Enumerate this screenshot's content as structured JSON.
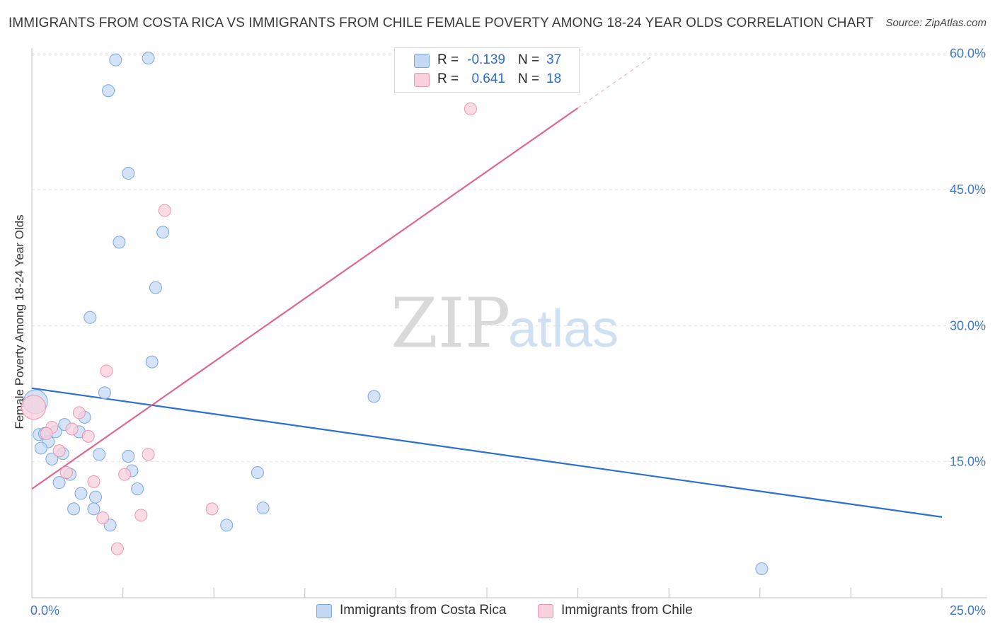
{
  "header": {
    "title": "IMMIGRANTS FROM COSTA RICA VS IMMIGRANTS FROM CHILE FEMALE POVERTY AMONG 18-24 YEAR OLDS CORRELATION CHART",
    "source": "Source: ZipAtlas.com"
  },
  "watermark": {
    "zip": "ZIP",
    "atlas": "atlas"
  },
  "colors": {
    "blue_fill": "#c5d9f4",
    "blue_stroke": "#7aa7df",
    "blue_line": "#2b6fd1",
    "pink_fill": "#f9d0dc",
    "pink_stroke": "#ec94b2",
    "pink_line": "#e0668f",
    "axis_text": "#3f78c9",
    "grid": "#e3e3e3"
  },
  "legend": {
    "r_label": "R =",
    "n_label": "N =",
    "series": [
      {
        "r": "-0.139",
        "n": "37"
      },
      {
        "r": "0.641",
        "n": "18"
      }
    ]
  },
  "chart_data": {
    "type": "scatter",
    "title": "IMMIGRANTS FROM COSTA RICA VS IMMIGRANTS FROM CHILE FEMALE POVERTY AMONG 18-24 YEAR OLDS CORRELATION CHART",
    "xlabel": "",
    "ylabel": "Female Poverty Among 18-24 Year Olds",
    "xlim": [
      0,
      25
    ],
    "ylim": [
      0,
      60.6
    ],
    "x_tick_labels": [
      "0.0%",
      "25.0%"
    ],
    "y_ticks": [
      15,
      30,
      45,
      60
    ],
    "y_tick_labels": [
      "15.0%",
      "30.0%",
      "45.0%",
      "60.0%"
    ],
    "series": [
      {
        "name": "Immigrants from Costa Rica",
        "r": -0.139,
        "n": 37,
        "trend": {
          "x0": 0,
          "y0": 23.1,
          "x1": 25,
          "y1": 8.9
        },
        "points": [
          [
            2.3,
            59.3
          ],
          [
            3.2,
            59.5
          ],
          [
            2.1,
            55.9
          ],
          [
            2.65,
            46.8
          ],
          [
            2.4,
            39.2
          ],
          [
            3.6,
            40.3
          ],
          [
            3.4,
            34.2
          ],
          [
            1.6,
            30.9
          ],
          [
            3.3,
            26.0
          ],
          [
            2.0,
            22.6
          ],
          [
            9.4,
            22.2
          ],
          [
            0.1,
            21.6
          ],
          [
            1.45,
            19.9
          ],
          [
            0.9,
            19.1
          ],
          [
            0.2,
            18.0
          ],
          [
            0.35,
            18.1
          ],
          [
            0.65,
            18.3
          ],
          [
            1.3,
            18.3
          ],
          [
            0.45,
            17.2
          ],
          [
            0.25,
            16.5
          ],
          [
            0.85,
            15.9
          ],
          [
            1.85,
            15.8
          ],
          [
            2.65,
            15.6
          ],
          [
            0.55,
            15.3
          ],
          [
            2.75,
            14.0
          ],
          [
            1.05,
            13.6
          ],
          [
            6.2,
            13.8
          ],
          [
            0.75,
            12.7
          ],
          [
            2.9,
            12.0
          ],
          [
            1.35,
            11.5
          ],
          [
            1.75,
            11.1
          ],
          [
            1.15,
            9.8
          ],
          [
            1.7,
            9.8
          ],
          [
            6.35,
            9.9
          ],
          [
            2.15,
            8.0
          ],
          [
            5.35,
            8.0
          ],
          [
            20.05,
            3.2
          ]
        ]
      },
      {
        "name": "Immigrants from Chile",
        "r": 0.641,
        "n": 18,
        "trend": {
          "x0": 0,
          "y0": 12.0,
          "x1": 15.0,
          "y1": 54.0,
          "dash_x1": 17.0,
          "dash_y1": 59.6
        },
        "points": [
          [
            12.05,
            53.9
          ],
          [
            3.65,
            42.7
          ],
          [
            2.05,
            25.0
          ],
          [
            0.05,
            21.0
          ],
          [
            1.3,
            20.4
          ],
          [
            0.55,
            18.8
          ],
          [
            0.4,
            18.1
          ],
          [
            1.1,
            18.6
          ],
          [
            1.55,
            17.8
          ],
          [
            0.75,
            16.2
          ],
          [
            3.2,
            15.8
          ],
          [
            0.95,
            13.8
          ],
          [
            2.55,
            13.6
          ],
          [
            1.7,
            12.8
          ],
          [
            4.95,
            9.8
          ],
          [
            3.0,
            9.1
          ],
          [
            1.95,
            8.8
          ],
          [
            2.35,
            5.4
          ]
        ]
      }
    ]
  },
  "bottom_legend": [
    {
      "label": "Immigrants from Costa Rica"
    },
    {
      "label": "Immigrants from Chile"
    }
  ]
}
